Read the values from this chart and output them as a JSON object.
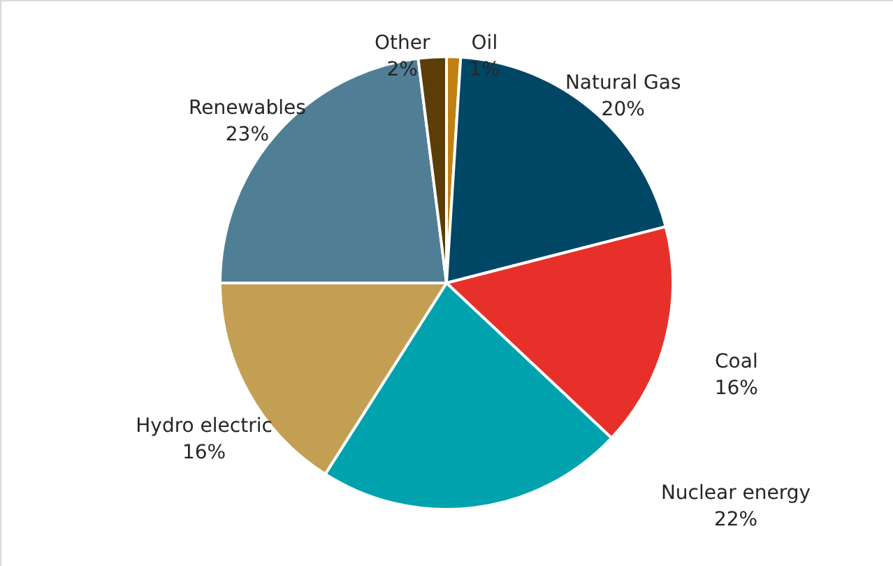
{
  "chart_data": {
    "type": "pie",
    "categories": [
      "Oil",
      "Natural Gas",
      "Coal",
      "Nuclear energy",
      "Hydro electric",
      "Renewables",
      "Other"
    ],
    "values": [
      1,
      20,
      16,
      22,
      16,
      23,
      2
    ],
    "value_labels": [
      "1%",
      "20%",
      "16%",
      "22%",
      "16%",
      "23%",
      "2%"
    ],
    "colors": [
      "#c08012",
      "#004766",
      "#e8302a",
      "#00a3ad",
      "#c29f52",
      "#507f95",
      "#5a3d08"
    ]
  }
}
